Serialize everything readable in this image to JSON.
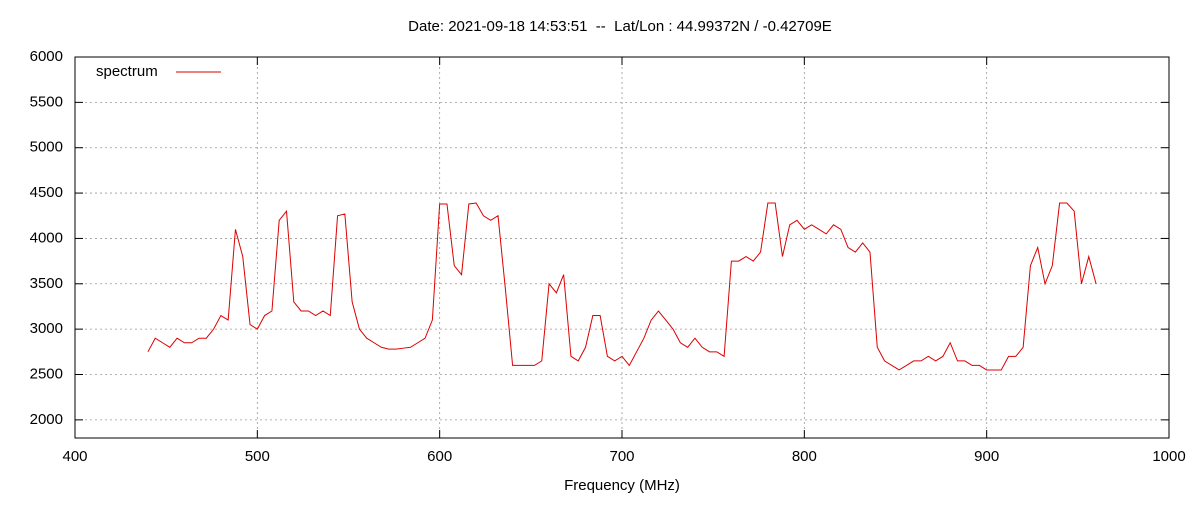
{
  "chart_data": {
    "type": "line",
    "title": "Date: 2021-09-18 14:53:51  --  Lat/Lon : 44.99372N / -0.42709E",
    "x_label": "Frequency (MHz)",
    "x": [
      440,
      444,
      448,
      452,
      456,
      460,
      464,
      468,
      472,
      476,
      480,
      484,
      488,
      492,
      496,
      500,
      504,
      508,
      512,
      516,
      520,
      524,
      528,
      532,
      536,
      540,
      544,
      548,
      552,
      556,
      560,
      564,
      568,
      572,
      576,
      580,
      584,
      588,
      592,
      596,
      600,
      604,
      608,
      612,
      616,
      620,
      624,
      628,
      632,
      636,
      640,
      644,
      648,
      652,
      656,
      660,
      664,
      668,
      672,
      676,
      680,
      684,
      688,
      692,
      696,
      700,
      704,
      708,
      712,
      716,
      720,
      724,
      728,
      732,
      736,
      740,
      744,
      748,
      752,
      756,
      760,
      764,
      768,
      772,
      776,
      780,
      784,
      788,
      792,
      796,
      800,
      804,
      808,
      812,
      816,
      820,
      824,
      828,
      832,
      836,
      840,
      844,
      848,
      852,
      856,
      860,
      864,
      868,
      872,
      876,
      880,
      884,
      888,
      892,
      896,
      900,
      904,
      908,
      912,
      916,
      920,
      924,
      928,
      932,
      936,
      940,
      944,
      948,
      952,
      956,
      960
    ],
    "series": [
      {
        "name": "spectrum",
        "color": "#dd0000",
        "values": [
          2750,
          2900,
          2850,
          2800,
          2900,
          2850,
          2850,
          2900,
          2900,
          3000,
          3150,
          3100,
          4100,
          3800,
          3050,
          3000,
          3150,
          3200,
          4200,
          4300,
          3300,
          3200,
          3200,
          3150,
          3200,
          3150,
          4250,
          4270,
          3300,
          3000,
          2900,
          2850,
          2800,
          2780,
          2780,
          2790,
          2800,
          2850,
          2900,
          3100,
          4380,
          4380,
          3700,
          3600,
          4380,
          4390,
          4250,
          4200,
          4250,
          3450,
          2600,
          2600,
          2600,
          2600,
          2650,
          3500,
          3400,
          3600,
          2700,
          2650,
          2800,
          3150,
          3150,
          2700,
          2650,
          2700,
          2600,
          2750,
          2900,
          3100,
          3200,
          3100,
          3000,
          2850,
          2800,
          2900,
          2800,
          2750,
          2750,
          2700,
          3750,
          3750,
          3800,
          3750,
          3850,
          4390,
          4390,
          3800,
          4150,
          4200,
          4100,
          4150,
          4100,
          4050,
          4150,
          4100,
          3900,
          3850,
          3950,
          3850,
          2800,
          2650,
          2600,
          2550,
          2600,
          2650,
          2650,
          2700,
          2650,
          2700,
          2850,
          2650,
          2650,
          2600,
          2600,
          2550,
          2550,
          2550,
          2700,
          2700,
          2800,
          3700,
          3900,
          3500,
          3700,
          4390,
          4390,
          4300,
          3500,
          3800,
          3500
        ]
      }
    ],
    "xlim": [
      400,
      1000
    ],
    "xticks": [
      400,
      500,
      600,
      700,
      800,
      900,
      1000
    ],
    "ylim": [
      1800,
      6000
    ],
    "yticks": [
      2000,
      2500,
      3000,
      3500,
      4000,
      4500,
      5000,
      5500,
      6000
    ],
    "grid": true,
    "legend": "top-left"
  }
}
